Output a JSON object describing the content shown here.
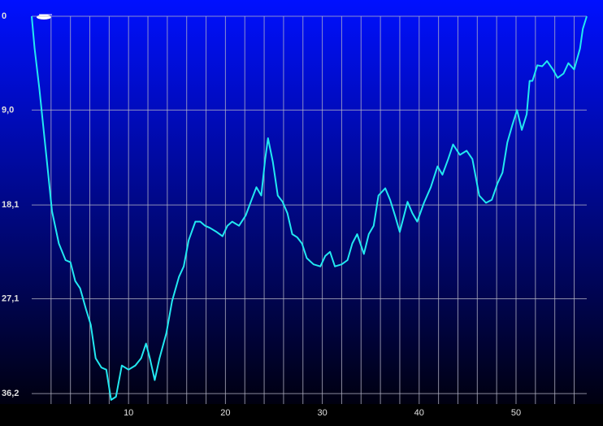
{
  "chart_data": {
    "type": "line",
    "x": [
      0,
      0.3,
      0.8,
      1.5,
      2.1,
      2.8,
      3.5,
      4.0,
      4.5,
      5.0,
      5.6,
      6.1,
      6.6,
      7.2,
      7.7,
      8.2,
      8.7,
      9.3,
      10.0,
      10.7,
      11.3,
      11.8,
      12.2,
      12.7,
      13.2,
      13.9,
      14.5,
      15.2,
      15.7,
      16.2,
      16.9,
      17.4,
      17.9,
      18.4,
      19.1,
      19.7,
      20.2,
      20.7,
      21.4,
      22.1,
      22.7,
      23.2,
      23.7,
      24.1,
      24.4,
      24.9,
      25.4,
      25.9,
      26.4,
      26.9,
      27.4,
      27.9,
      28.4,
      29.1,
      29.8,
      30.3,
      30.8,
      31.3,
      32.0,
      32.6,
      33.1,
      33.6,
      34.3,
      34.8,
      35.3,
      35.8,
      36.5,
      37.0,
      37.5,
      38.0,
      38.5,
      38.8,
      39.3,
      39.8,
      40.5,
      41.2,
      41.9,
      42.4,
      43.0,
      43.5,
      44.2,
      44.9,
      45.5,
      46.2,
      46.9,
      47.5,
      48.1,
      48.6,
      49.1,
      49.6,
      50.1,
      50.6,
      51.1,
      51.4,
      51.7,
      52.2,
      52.7,
      53.2,
      53.8,
      54.3,
      54.9,
      55.4,
      56.0,
      56.6,
      56.9,
      57.3
    ],
    "series": [
      {
        "color": "#22e8f0",
        "values": [
          0,
          3.1,
          7.0,
          13.3,
          18.7,
          21.8,
          23.4,
          23.6,
          25.4,
          26.1,
          28.1,
          29.6,
          32.8,
          33.7,
          33.9,
          36.8,
          36.5,
          33.5,
          33.9,
          33.5,
          32.8,
          31.4,
          32.8,
          34.9,
          32.8,
          30.4,
          27.3,
          25.0,
          24.0,
          21.5,
          19.7,
          19.7,
          20.1,
          20.3,
          20.7,
          21.1,
          20.1,
          19.7,
          20.1,
          19.1,
          17.6,
          16.4,
          17.2,
          13.7,
          11.7,
          14.0,
          17.2,
          17.8,
          18.9,
          20.9,
          21.2,
          21.8,
          23.2,
          23.8,
          24.0,
          23.0,
          22.6,
          24.0,
          23.8,
          23.4,
          21.8,
          20.9,
          22.8,
          20.9,
          20.1,
          17.2,
          16.5,
          17.6,
          19.1,
          20.7,
          18.9,
          17.8,
          18.9,
          19.7,
          17.9,
          16.4,
          14.4,
          15.2,
          13.7,
          12.3,
          13.3,
          12.9,
          13.7,
          17.2,
          17.9,
          17.6,
          16.0,
          15.0,
          12.1,
          10.5,
          9.0,
          10.9,
          9.4,
          6.2,
          6.2,
          4.7,
          4.8,
          4.3,
          5.1,
          5.9,
          5.5,
          4.5,
          5.1,
          3.1,
          1.2,
          0
        ]
      }
    ],
    "xlim": [
      0,
      57.3
    ],
    "xticks": [
      10,
      20,
      30,
      40,
      50
    ],
    "xgrid": [
      2,
      4,
      6,
      8,
      10,
      12,
      14,
      16,
      18,
      20,
      22,
      24,
      26,
      28,
      30,
      32,
      34,
      36,
      38,
      40,
      42,
      44,
      46,
      48,
      50,
      52,
      54,
      56
    ],
    "ylim": [
      0,
      37.2
    ],
    "y_inverted": true,
    "yticks": [
      0,
      {
        "value": 9.0,
        "label": "9,0"
      },
      {
        "value": 18.1,
        "label": "18,1"
      },
      {
        "value": 27.1,
        "label": "27,1"
      },
      {
        "value": 36.2,
        "label": "36,2"
      }
    ],
    "grid": true
  }
}
